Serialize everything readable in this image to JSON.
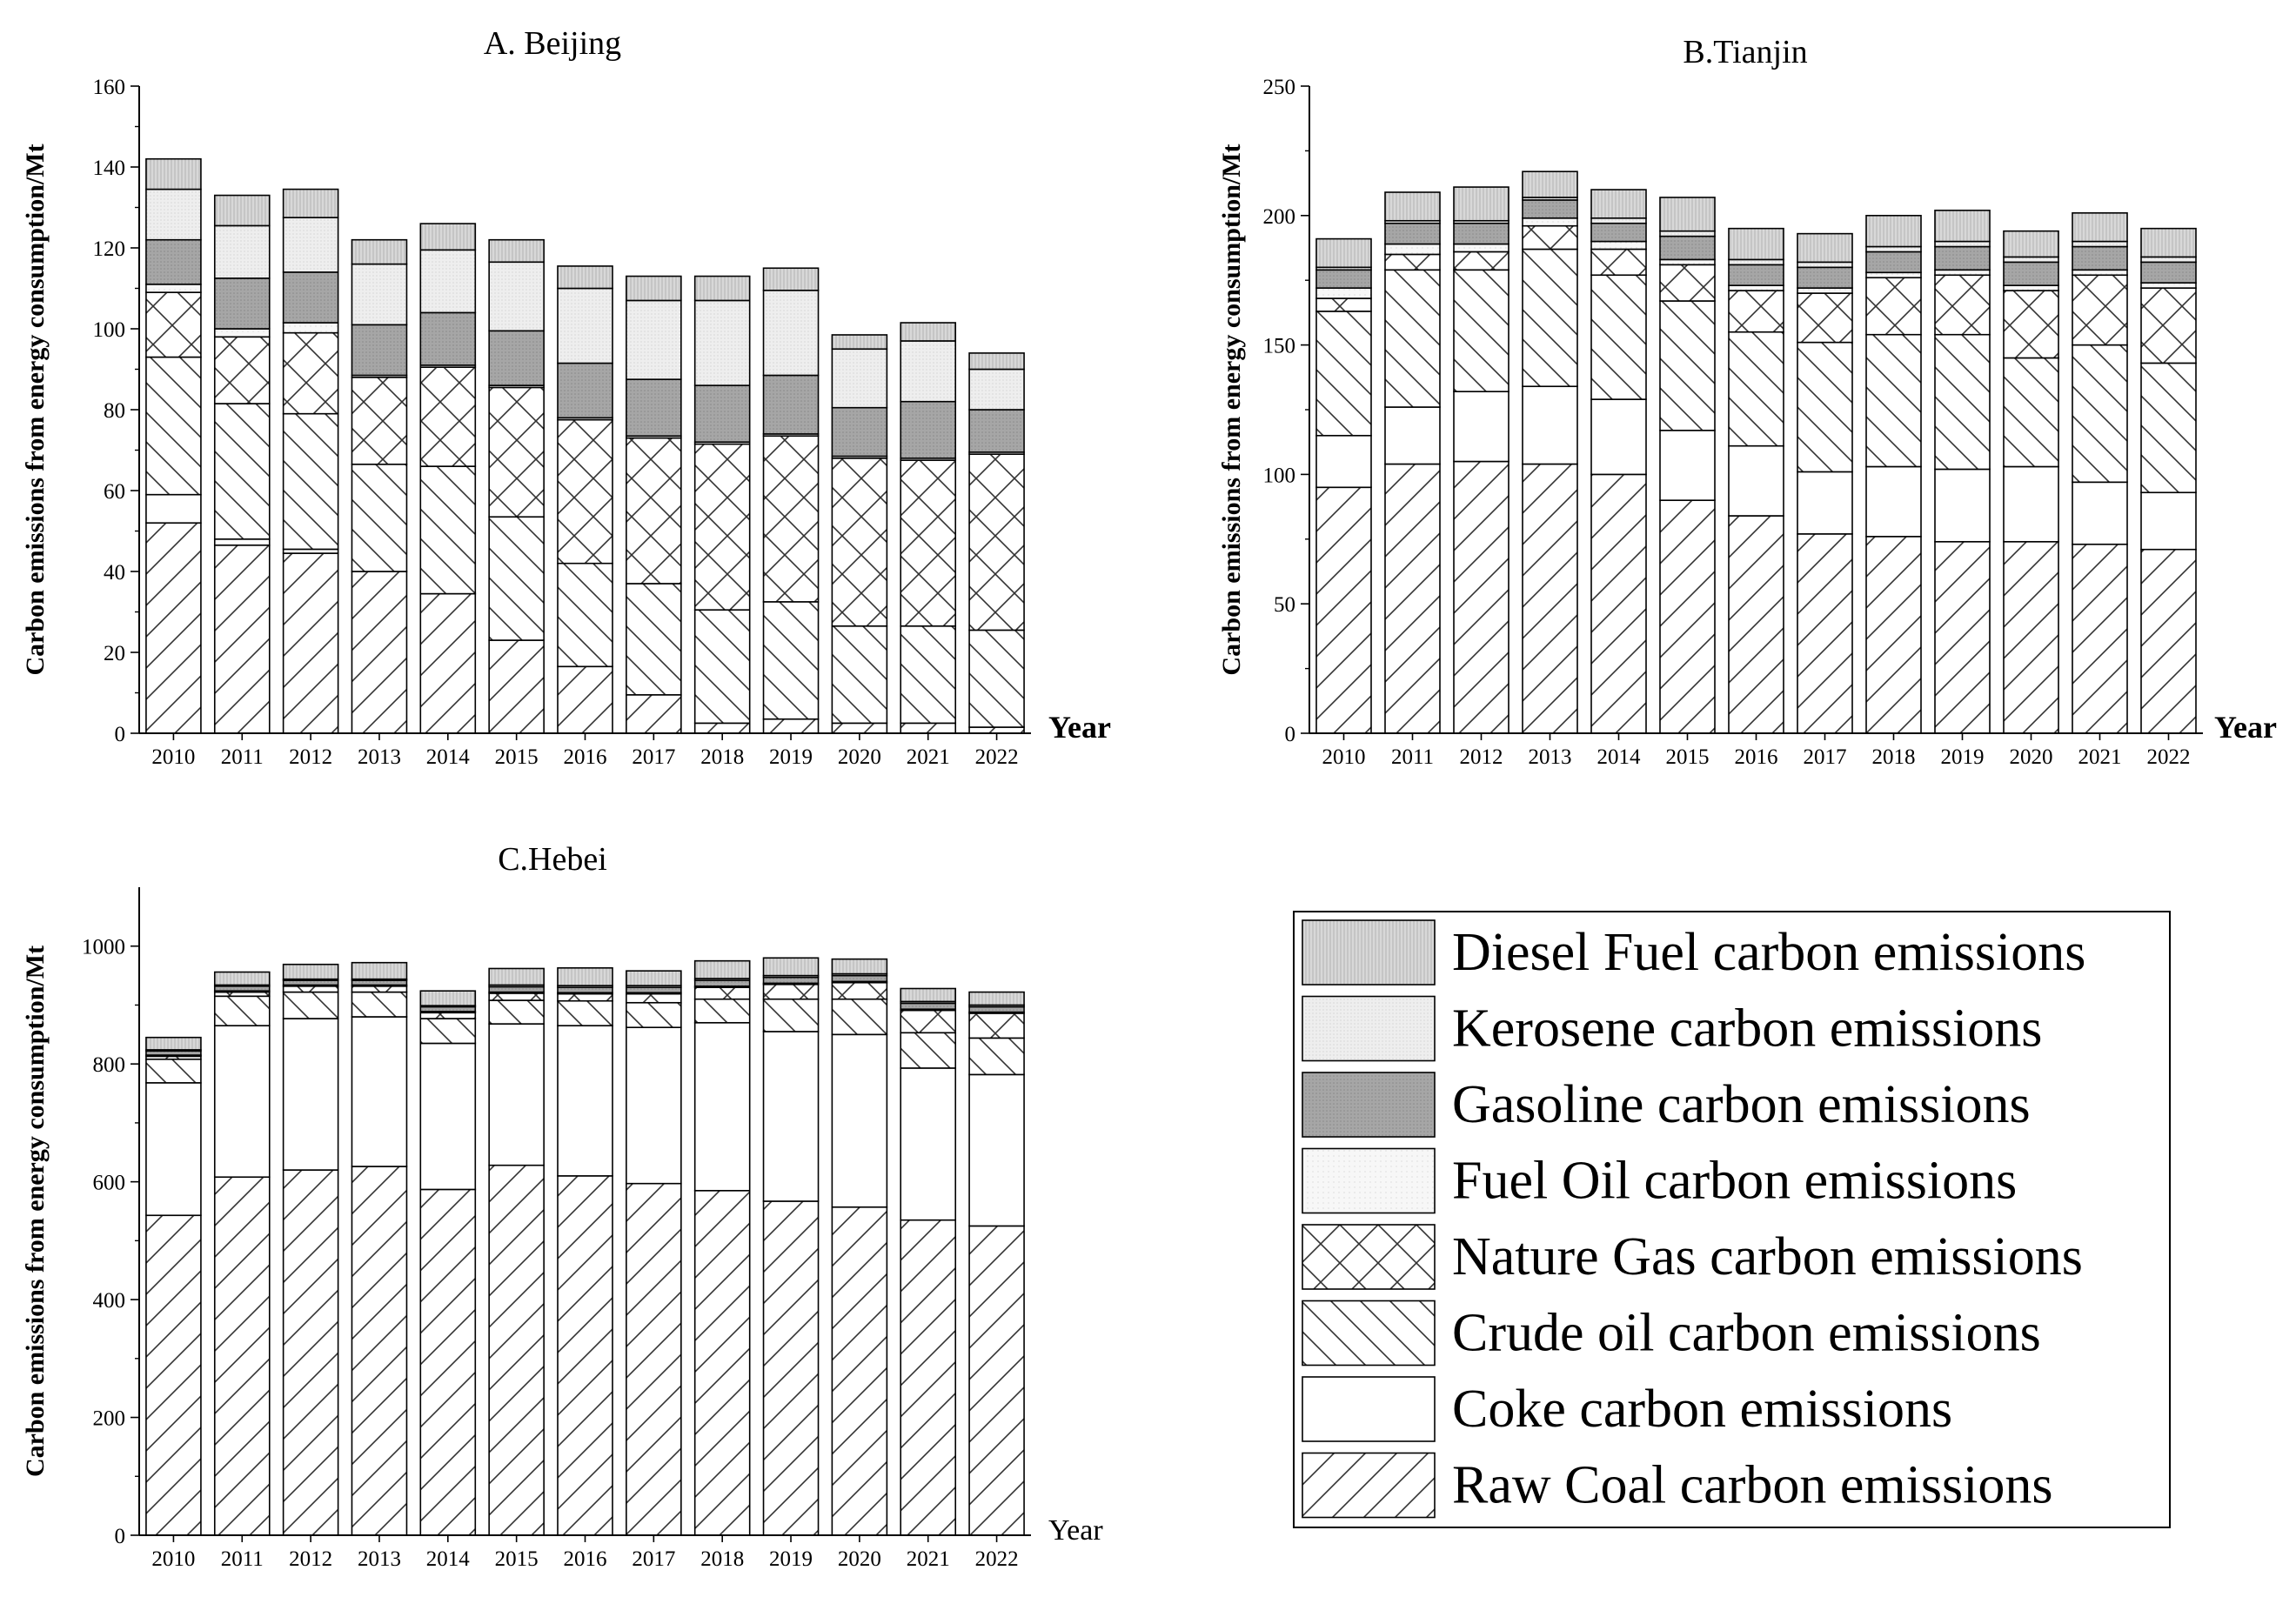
{
  "legend": [
    {
      "key": "diesel",
      "label": "Diesel Fuel carbon emissions",
      "pattern": "diesel"
    },
    {
      "key": "kerosene",
      "label": "Kerosene carbon emissions",
      "pattern": "kerosene"
    },
    {
      "key": "gasoline",
      "label": "Gasoline carbon emissions",
      "pattern": "gasoline"
    },
    {
      "key": "fueloil",
      "label": "Fuel Oil carbon emissions",
      "pattern": "fueloil"
    },
    {
      "key": "gas",
      "label": "Nature Gas carbon emissions",
      "pattern": "gas"
    },
    {
      "key": "crude",
      "label": "Crude oil carbon emissions",
      "pattern": "crude"
    },
    {
      "key": "coke",
      "label": "Coke carbon emissions",
      "pattern": "coke"
    },
    {
      "key": "coal",
      "label": "Raw Coal carbon emissions",
      "pattern": "coal"
    }
  ],
  "colors": {
    "gasoline": "#a6a6a6",
    "diesel": "#d4d4d4",
    "kerosene": "#eeeeee",
    "fueloil": "#f7f7f7"
  },
  "chart_data": [
    {
      "type": "bar",
      "stacked": true,
      "title": "A. Beijing",
      "xlabel": "Year",
      "ylabel": "Carbon emissions from energy consumption/Mt",
      "ylim": [
        0,
        160
      ],
      "yticks": [
        0,
        20,
        40,
        60,
        80,
        100,
        120,
        140,
        160
      ],
      "categories": [
        "2010",
        "2011",
        "2012",
        "2013",
        "2014",
        "2015",
        "2016",
        "2017",
        "2018",
        "2019",
        "2020",
        "2021",
        "2022"
      ],
      "series": [
        {
          "name": "Raw Coal carbon emissions",
          "key": "coal",
          "values": [
            52,
            46.5,
            44.5,
            40,
            34.5,
            23,
            16.5,
            9.5,
            2.5,
            3.5,
            2.5,
            2.5,
            1.5
          ]
        },
        {
          "name": "Coke carbon emissions",
          "key": "coke",
          "values": [
            7,
            1.5,
            1,
            0,
            0,
            0,
            0,
            0,
            0,
            0,
            0,
            0,
            0
          ]
        },
        {
          "name": "Crude oil carbon emissions",
          "key": "crude",
          "values": [
            34,
            33.5,
            33.5,
            26.5,
            31.5,
            30.5,
            25.5,
            27.5,
            28,
            29,
            24,
            24,
            24
          ]
        },
        {
          "name": "Nature Gas carbon emissions",
          "key": "gas",
          "values": [
            16,
            16.5,
            20,
            21.5,
            24.5,
            32,
            35.5,
            36,
            41,
            41,
            41.5,
            41,
            43.5
          ]
        },
        {
          "name": "Fuel Oil carbon emissions",
          "key": "fueloil",
          "values": [
            2,
            2,
            2.5,
            0.5,
            0.5,
            0.5,
            0.5,
            0.5,
            0.5,
            0.5,
            0.5,
            0.5,
            0.5
          ]
        },
        {
          "name": "Gasoline carbon emissions",
          "key": "gasoline",
          "values": [
            11,
            12.5,
            12.5,
            12.5,
            13,
            13.5,
            13.5,
            14,
            14,
            14.5,
            12,
            14,
            10.5
          ]
        },
        {
          "name": "Kerosene carbon emissions",
          "key": "kerosene",
          "values": [
            12.5,
            13,
            13.5,
            15,
            15.5,
            17,
            18.5,
            19.5,
            21,
            21,
            14.5,
            15,
            10
          ]
        },
        {
          "name": "Diesel Fuel carbon emissions",
          "key": "diesel",
          "values": [
            7.5,
            7.5,
            7,
            6,
            6.5,
            5.5,
            5.5,
            6,
            6,
            5.5,
            3.5,
            4.5,
            4
          ]
        }
      ]
    },
    {
      "type": "bar",
      "stacked": true,
      "title": "B.Tianjin",
      "xlabel": "Year",
      "ylabel": "Carbon emissions from energy consumption/Mt",
      "ylim": [
        0,
        250
      ],
      "yticks": [
        0,
        50,
        100,
        150,
        200,
        250
      ],
      "categories": [
        "2010",
        "2011",
        "2012",
        "2013",
        "2014",
        "2015",
        "2016",
        "2017",
        "2018",
        "2019",
        "2020",
        "2021",
        "2022"
      ],
      "series": [
        {
          "name": "Raw Coal carbon emissions",
          "key": "coal",
          "values": [
            95,
            104,
            105,
            104,
            100,
            90,
            84,
            77,
            76,
            74,
            74,
            73,
            71
          ]
        },
        {
          "name": "Coke carbon emissions",
          "key": "coke",
          "values": [
            20,
            22,
            27,
            30,
            29,
            27,
            27,
            24,
            27,
            28,
            29,
            24,
            22
          ]
        },
        {
          "name": "Crude oil carbon emissions",
          "key": "crude",
          "values": [
            48,
            53,
            47,
            53,
            48,
            50,
            44,
            50,
            51,
            52,
            42,
            53,
            50
          ]
        },
        {
          "name": "Nature Gas carbon emissions",
          "key": "gas",
          "values": [
            5,
            6,
            7,
            9,
            10,
            14,
            16,
            19,
            22,
            23,
            26,
            27,
            29
          ]
        },
        {
          "name": "Fuel Oil carbon emissions",
          "key": "fueloil",
          "values": [
            4,
            4,
            3,
            3,
            3,
            2,
            2,
            2,
            2,
            2,
            2,
            2,
            2
          ]
        },
        {
          "name": "Gasoline carbon emissions",
          "key": "gasoline",
          "values": [
            7,
            8,
            8,
            7,
            7,
            9,
            8,
            8,
            8,
            9,
            9,
            9,
            8
          ]
        },
        {
          "name": "Kerosene carbon emissions",
          "key": "kerosene",
          "values": [
            1,
            1,
            1,
            1,
            2,
            2,
            2,
            2,
            2,
            2,
            2,
            2,
            2
          ]
        },
        {
          "name": "Diesel Fuel carbon emissions",
          "key": "diesel",
          "values": [
            11,
            11,
            13,
            10,
            11,
            13,
            12,
            11,
            12,
            12,
            10,
            11,
            11
          ]
        }
      ]
    },
    {
      "type": "bar",
      "stacked": true,
      "title": "C.Hebei",
      "xlabel": "Year",
      "ylabel": "Carbon emissions from energy consumption/Mt",
      "ylim": [
        0,
        1100
      ],
      "yticks": [
        0,
        200,
        400,
        600,
        800,
        1000
      ],
      "categories": [
        "2010",
        "2011",
        "2012",
        "2013",
        "2014",
        "2015",
        "2016",
        "2017",
        "2018",
        "2019",
        "2020",
        "2021",
        "2022"
      ],
      "series": [
        {
          "name": "Raw Coal carbon emissions",
          "key": "coal",
          "values": [
            543,
            608,
            620,
            626,
            587,
            628,
            610,
            597,
            585,
            567,
            557,
            535,
            525
          ]
        },
        {
          "name": "Coke carbon emissions",
          "key": "coke",
          "values": [
            225,
            257,
            257,
            254,
            248,
            240,
            255,
            265,
            285,
            288,
            293,
            258,
            257
          ]
        },
        {
          "name": "Crude oil carbon emissions",
          "key": "crude",
          "values": [
            40,
            50,
            45,
            42,
            42,
            40,
            42,
            42,
            40,
            55,
            60,
            60,
            62
          ]
        },
        {
          "name": "Nature Gas carbon emissions",
          "key": "gas",
          "values": [
            5,
            7,
            10,
            10,
            10,
            12,
            12,
            15,
            20,
            25,
            28,
            38,
            42
          ]
        },
        {
          "name": "Fuel Oil carbon emissions",
          "key": "fueloil",
          "values": [
            2,
            2,
            2,
            2,
            2,
            2,
            2,
            2,
            2,
            2,
            2,
            2,
            2
          ]
        },
        {
          "name": "Gasoline carbon emissions",
          "key": "gasoline",
          "values": [
            7,
            8,
            8,
            8,
            8,
            9,
            9,
            9,
            10,
            10,
            10,
            10,
            9
          ]
        },
        {
          "name": "Kerosene carbon emissions",
          "key": "kerosene",
          "values": [
            2,
            2,
            2,
            2,
            2,
            3,
            3,
            3,
            3,
            3,
            3,
            3,
            3
          ]
        },
        {
          "name": "Diesel Fuel carbon emissions",
          "key": "diesel",
          "values": [
            21,
            22,
            25,
            28,
            25,
            28,
            30,
            25,
            30,
            30,
            25,
            22,
            22
          ]
        }
      ]
    }
  ]
}
